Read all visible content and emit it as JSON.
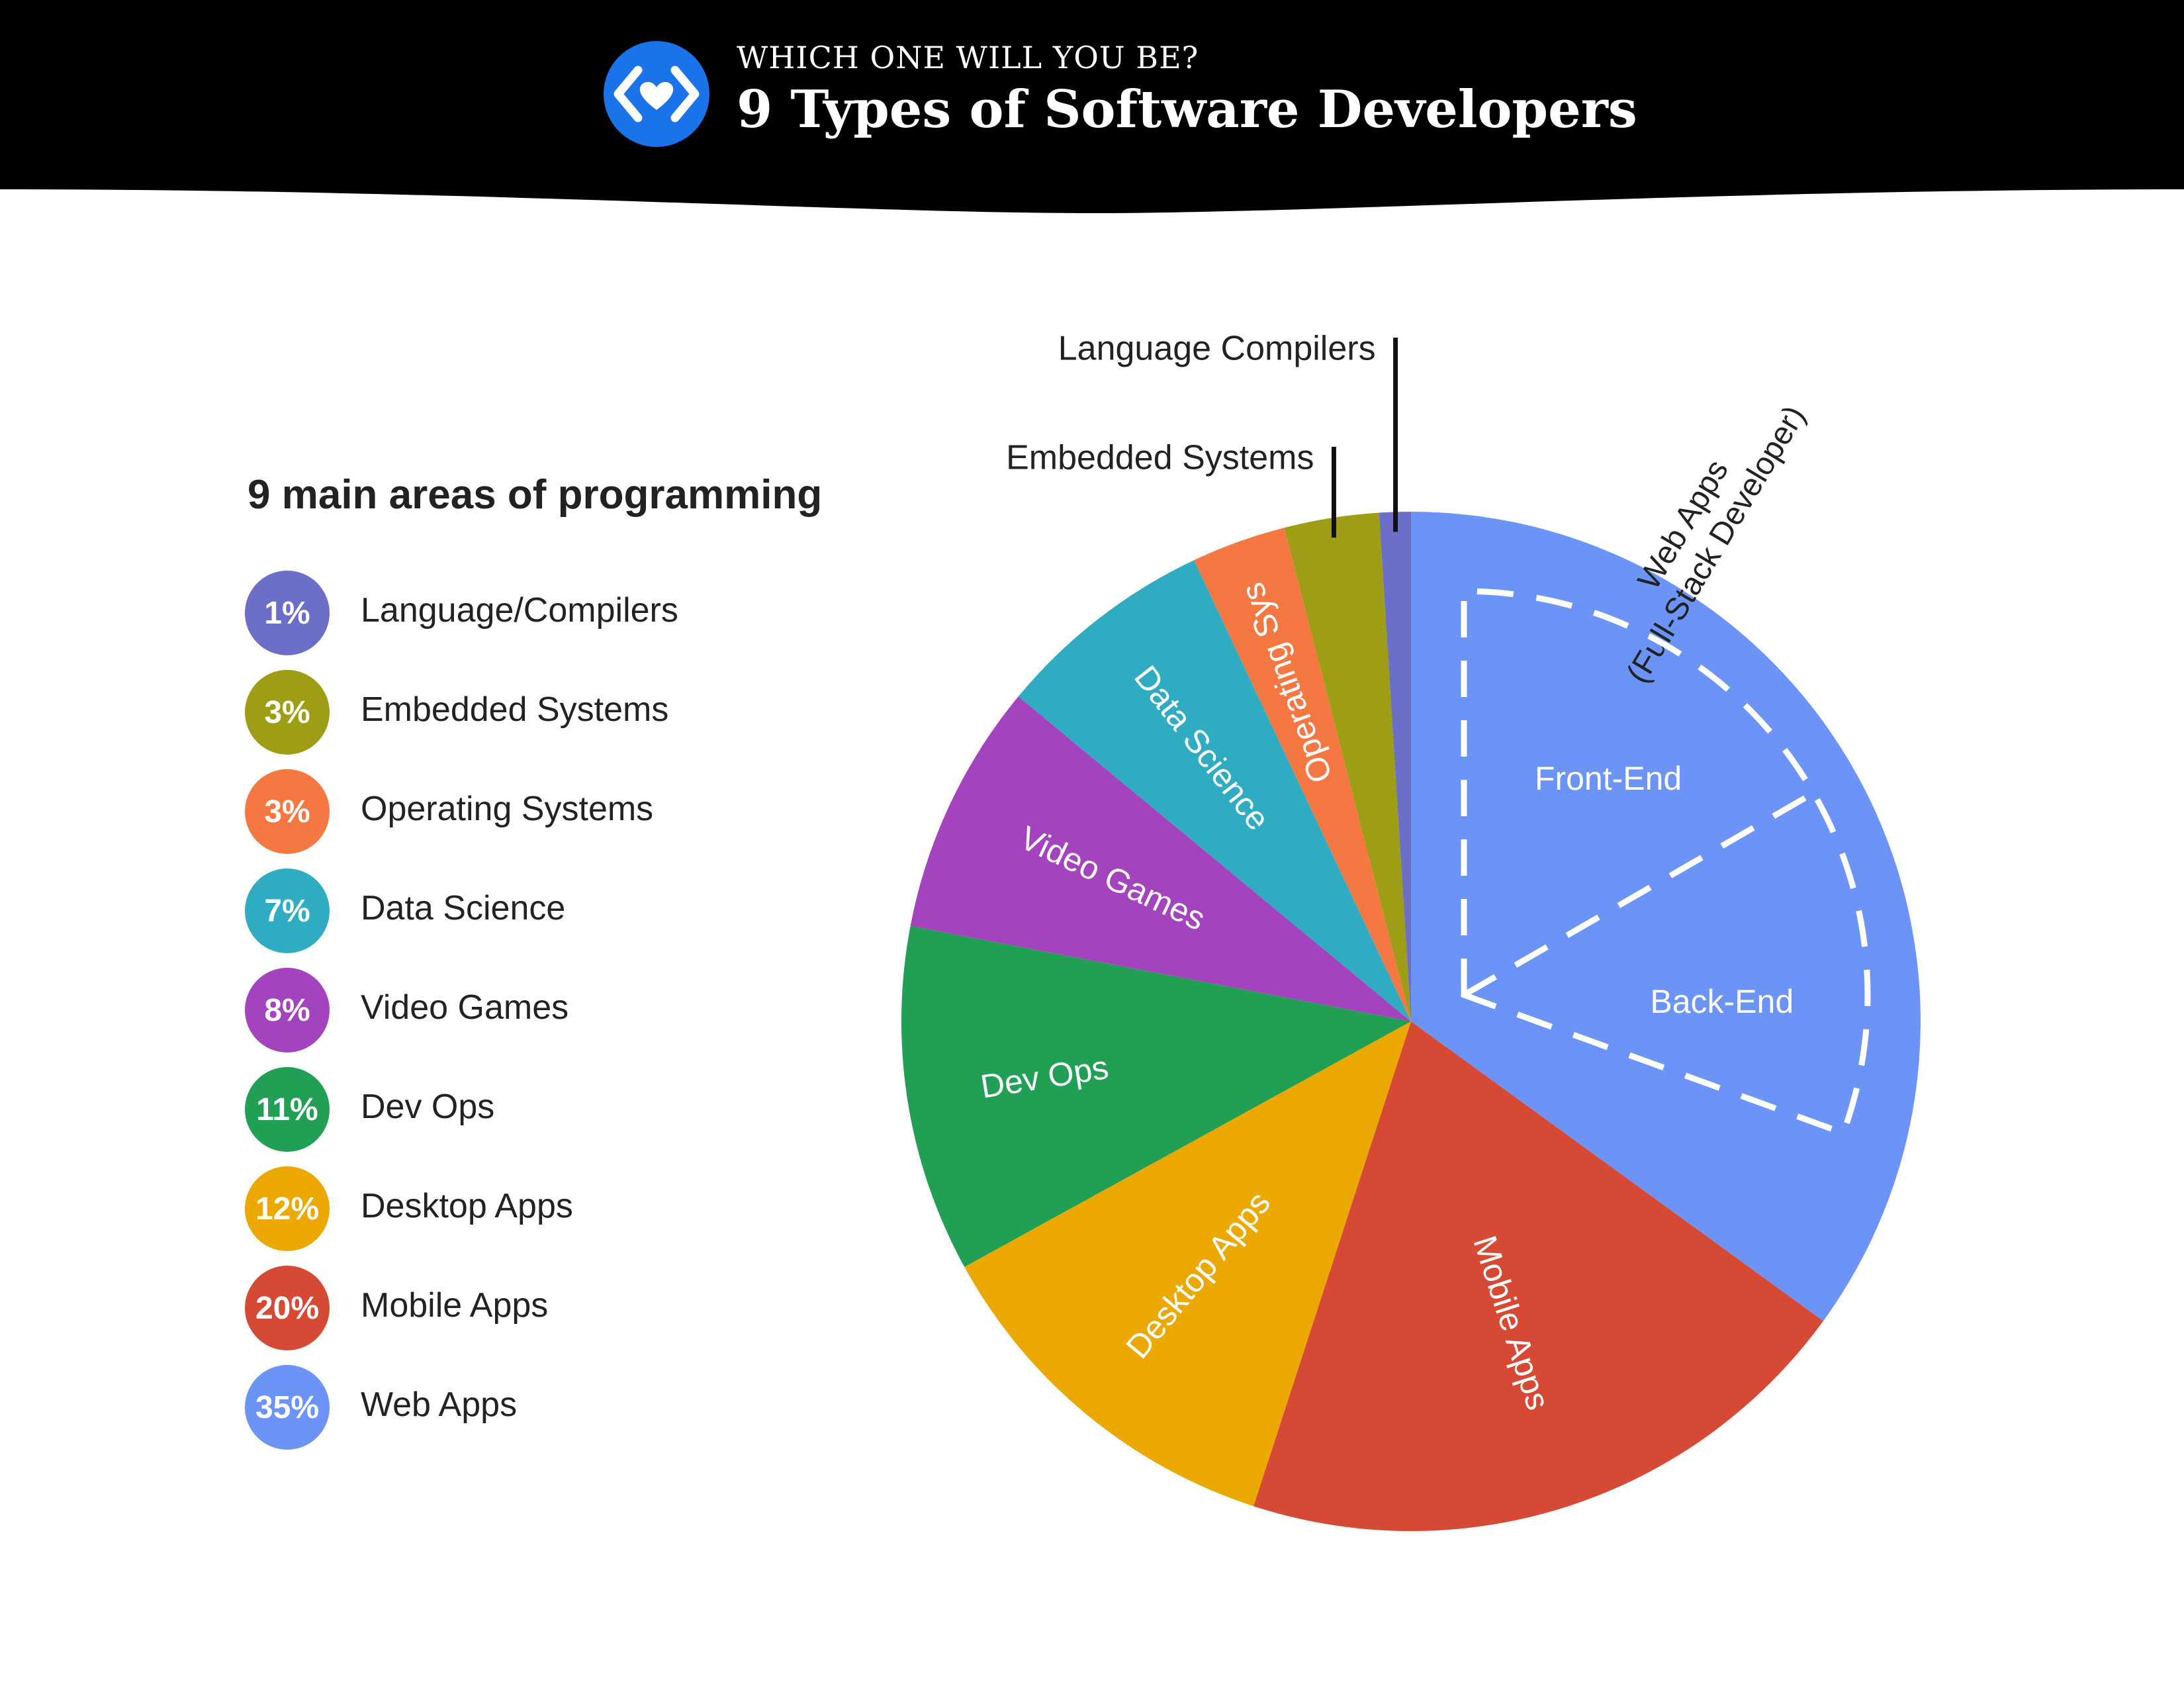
{
  "header": {
    "kicker": "WHICH ONE WILL YOU BE?",
    "title": "9 Types of Software Developers",
    "logo_icon": "code-heart-icon",
    "logo_color": "#1A73E8"
  },
  "legend": {
    "title": "9 main areas of programming",
    "items": [
      {
        "pct": "1%",
        "label": "Language/Compilers",
        "color": "#6B6FC8"
      },
      {
        "pct": "3%",
        "label": "Embedded Systems",
        "color": "#9E9E16"
      },
      {
        "pct": "3%",
        "label": "Operating Systems",
        "color": "#F57842"
      },
      {
        "pct": "7%",
        "label": "Data Science",
        "color": "#30ACC2"
      },
      {
        "pct": "8%",
        "label": "Video Games",
        "color": "#A443BE"
      },
      {
        "pct": "11%",
        "label": "Dev Ops",
        "color": "#21A055"
      },
      {
        "pct": "12%",
        "label": "Desktop Apps",
        "color": "#EAA800"
      },
      {
        "pct": "20%",
        "label": "Mobile Apps",
        "color": "#D64A35"
      },
      {
        "pct": "35%",
        "label": "Web Apps",
        "color": "#6C94F6"
      }
    ]
  },
  "chart_data": {
    "type": "pie",
    "title": "9 Types of Software Developers",
    "slices": [
      {
        "name": "Web Apps",
        "slice_label": "Web Apps\n(Full-Stack Developer)",
        "value": 35,
        "color": "#6C94F6"
      },
      {
        "name": "Mobile Apps",
        "slice_label": "Mobile Apps",
        "value": 20,
        "color": "#D64A35"
      },
      {
        "name": "Desktop Apps",
        "slice_label": "Desktop Apps",
        "value": 12,
        "color": "#EAA800"
      },
      {
        "name": "Dev Ops",
        "slice_label": "Dev Ops",
        "value": 11,
        "color": "#21A055"
      },
      {
        "name": "Video Games",
        "slice_label": "Video Games",
        "value": 8,
        "color": "#A443BE"
      },
      {
        "name": "Data Science",
        "slice_label": "Data Science",
        "value": 7,
        "color": "#30ACC2"
      },
      {
        "name": "Operating Systems",
        "slice_label": "Operating Sys",
        "value": 3,
        "color": "#F57842"
      },
      {
        "name": "Embedded Systems",
        "slice_label": "Embedded Systems",
        "value": 3,
        "color": "#9E9E16"
      },
      {
        "name": "Language/Compilers",
        "slice_label": "Language Compilers",
        "value": 1,
        "color": "#6B6FC8"
      }
    ],
    "web_apps_subdivisions": [
      "Front-End",
      "Back-End"
    ],
    "start": "12 o'clock",
    "direction": "clockwise"
  }
}
